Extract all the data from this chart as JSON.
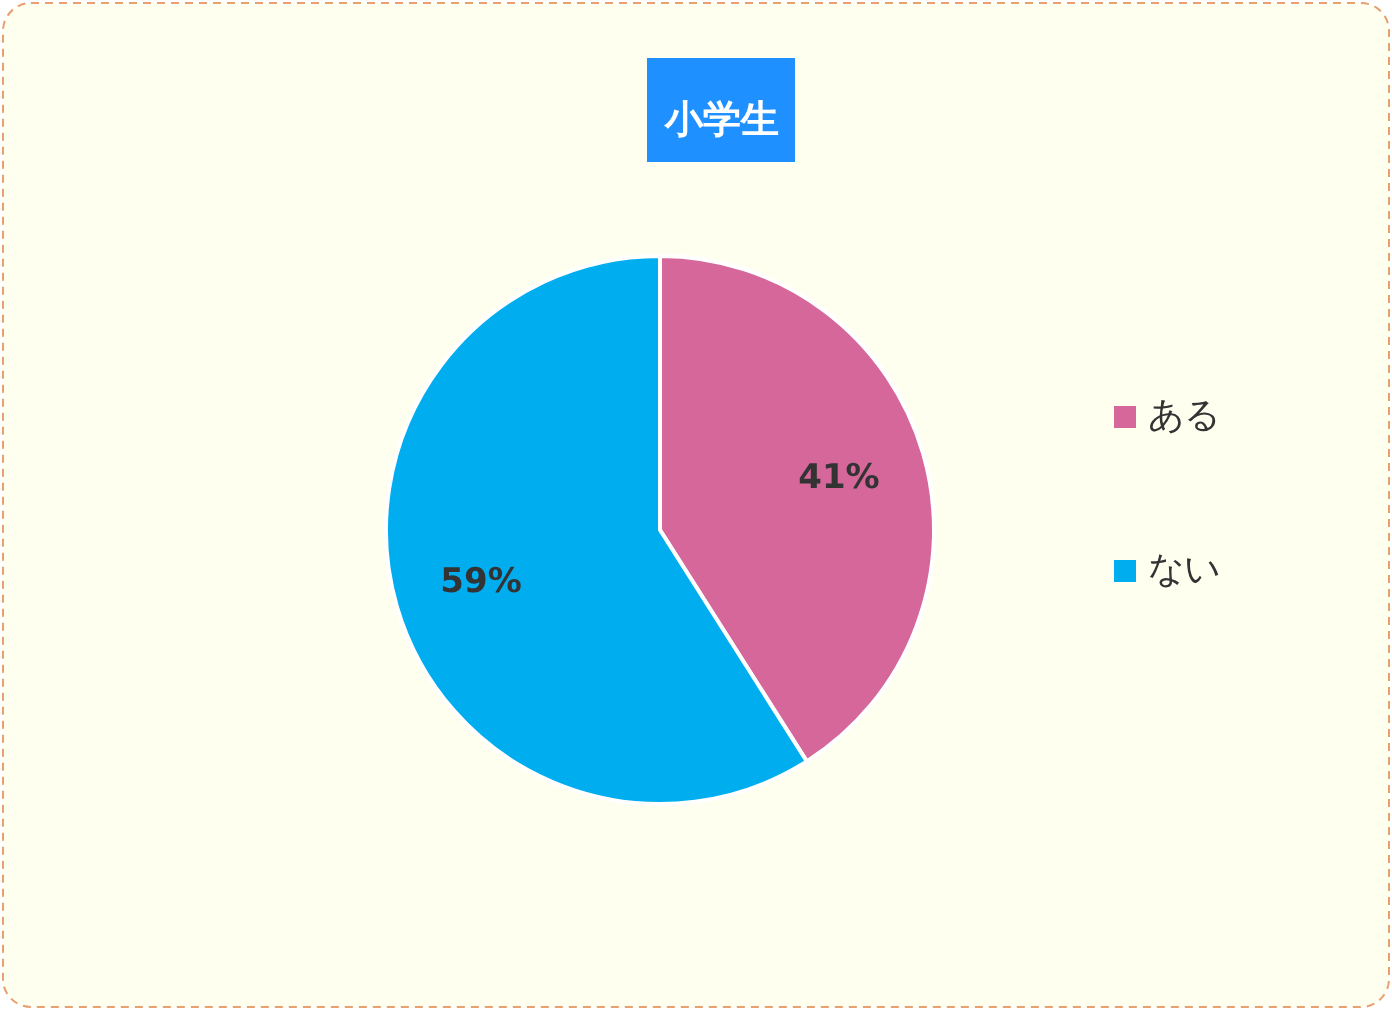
{
  "chart_data": {
    "type": "pie",
    "title": "小学生",
    "categories": [
      "ある",
      "ない"
    ],
    "values": [
      41,
      59
    ],
    "colors": [
      "#d5679a",
      "#00adef"
    ],
    "value_labels": [
      "41%",
      "59%"
    ],
    "legend": "right"
  }
}
